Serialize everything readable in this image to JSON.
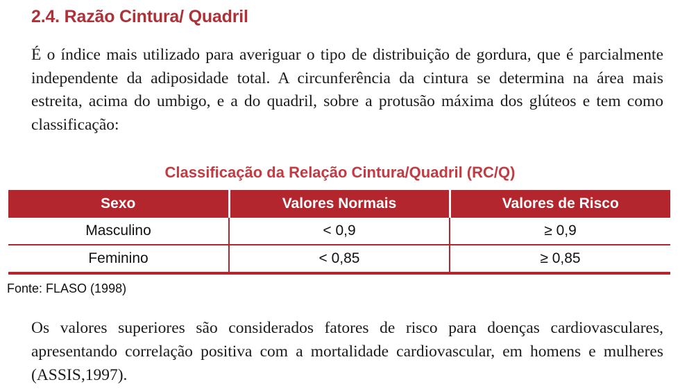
{
  "page": {
    "heading": "2.4. Razão Cintura/ Quadril",
    "paragraph1": "É o índice mais utilizado para averiguar o tipo de distribuição de gordura, que é parcialmente independente da adiposidade total. A circunferência da cintura se determina na área mais estreita, acima do umbigo, e a do quadril, sobre a protusão máxima dos glúteos e tem como classificação:",
    "table_title": "Classificação da Relação Cintura/Quadril (RC/Q)",
    "table": {
      "headers": [
        "Sexo",
        "Valores Normais",
        "Valores de Risco"
      ],
      "rows": [
        [
          "Masculino",
          "< 0,9",
          "≥ 0,9"
        ],
        [
          "Feminino",
          "< 0,85",
          "≥ 0,85"
        ]
      ]
    },
    "source": "Fonte: FLASO (1998)",
    "paragraph2": "Os valores superiores são considerados fatores de risco para doenças cardiovasculares, apresentando correlação positiva com a mortalidade cardiovascular, em homens e mulheres (ASSIS,1997)."
  },
  "colors": {
    "heading_red": "#AF3138",
    "title_red": "#C43A42",
    "table_header_bg": "#B3262E",
    "table_border": "#B3262E",
    "body_text": "#1B1B1B"
  }
}
